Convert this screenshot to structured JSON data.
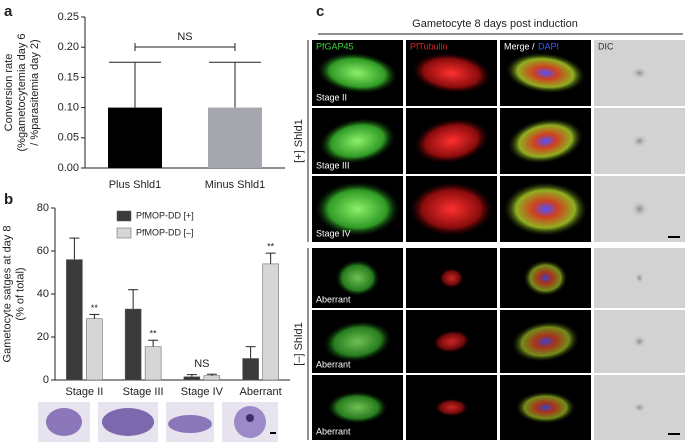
{
  "panel_labels": [
    "a",
    "b",
    "c"
  ],
  "chart_data": [
    {
      "type": "bar",
      "categories": [
        "Plus Shld1",
        "Minus Shld1"
      ],
      "values": [
        0.1,
        0.1
      ],
      "errors": [
        0.075,
        0.075
      ],
      "colors": [
        "#000000",
        "#a6a6ae"
      ],
      "ylim": [
        0,
        0.25
      ],
      "yticks": [
        {
          "value": 0,
          "label": "0.00"
        },
        {
          "value": 0.05,
          "label": "0.05"
        },
        {
          "value": 0.1,
          "label": "0.10"
        },
        {
          "value": 0.15,
          "label": "0.15"
        },
        {
          "value": 0.2,
          "label": "0.20"
        },
        {
          "value": 0.25,
          "label": "0.25"
        }
      ],
      "ylabel": [
        "Conversion rate",
        "(%gametocytemia day 6",
        "/ %parasitemia day 2)"
      ],
      "annotation": "NS"
    },
    {
      "type": "grouped-bar",
      "categories": [
        "Stage II",
        "Stage III",
        "Stage IV",
        "Aberrant"
      ],
      "series": [
        {
          "name": "PfMOP-DD [+]",
          "color": "#3a3a3a",
          "values": [
            56,
            33,
            1.5,
            10
          ],
          "errors": [
            10,
            9,
            1,
            5.5
          ]
        },
        {
          "name": "PfMOP-DD [–]",
          "color": "#d6d6d6",
          "values": [
            28.5,
            15.5,
            2,
            54
          ],
          "errors": [
            2,
            3,
            0.7,
            5
          ]
        }
      ],
      "ylim": [
        0,
        80
      ],
      "yticks": [
        0,
        20,
        40,
        60,
        80
      ],
      "ylabel": [
        "Gametocyte satges at day 8",
        "(% of total)"
      ],
      "annotations": [
        "**",
        "**",
        "NS",
        "**"
      ]
    }
  ],
  "panel_c": {
    "title": "Gametocyte 8 days post induction",
    "columns": [
      {
        "text": "PfGAP45",
        "color": "#3fd13f"
      },
      {
        "text": "PfTubulin",
        "color": "#e02020"
      },
      {
        "text": "Merge /",
        "color": "#ffffff"
      },
      {
        "text": "DAPI",
        "color": "#3a5cff"
      },
      {
        "text": "DIC",
        "color": "#333333"
      }
    ],
    "rows": [
      "Stage II",
      "Stage III",
      "Stage IV",
      "Aberrant",
      "Aberrant",
      "Aberrant"
    ],
    "groups": [
      "[+] Shld1",
      "[–] Shld1"
    ]
  }
}
